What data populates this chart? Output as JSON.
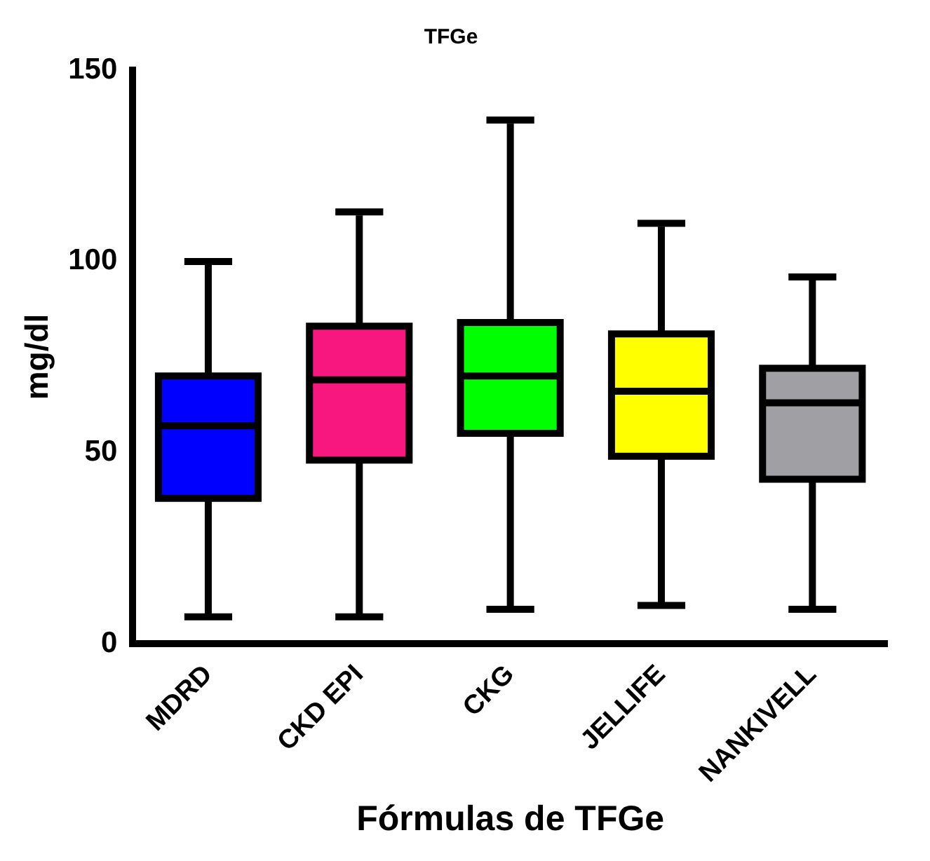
{
  "chart_data": {
    "type": "box",
    "title": "TFGe",
    "xlabel": "Fórmulas de TFGe",
    "ylabel": "mg/dl",
    "categories": [
      "MDRD",
      "CKD EPI",
      "CKG",
      "JELLIFE",
      "NANKIVELL"
    ],
    "colors": [
      "#0000ff",
      "#f7177f",
      "#00ff00",
      "#ffff00",
      "#a09fa4"
    ],
    "boxes": [
      {
        "low": 7,
        "q1": 38,
        "median": 57,
        "q3": 70,
        "high": 99
      },
      {
        "low": 7,
        "q1": 48,
        "median": 69,
        "q3": 83,
        "high": 112
      },
      {
        "low": 9,
        "q1": 55,
        "median": 70,
        "q3": 84,
        "high": 136
      },
      {
        "low": 10,
        "q1": 49,
        "median": 66,
        "q3": 81,
        "high": 109
      },
      {
        "low": 9,
        "q1": 43,
        "median": 63,
        "q3": 72,
        "high": 95
      }
    ],
    "ylim": [
      0,
      150
    ],
    "yticks": [
      0,
      50,
      100,
      150
    ],
    "grid": false,
    "legend": false
  }
}
